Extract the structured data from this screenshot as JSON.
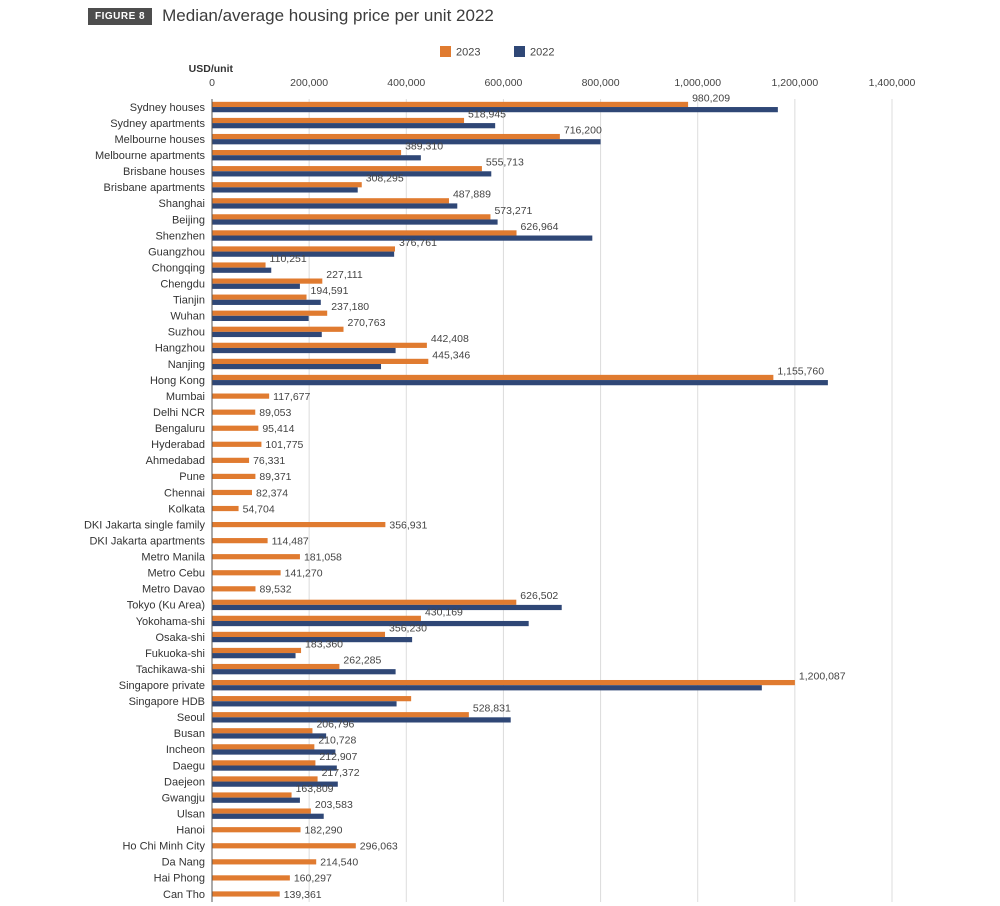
{
  "figure": {
    "tag": "FIGURE 8",
    "title": "Median/average housing price per unit 2022"
  },
  "chart_data": {
    "type": "bar",
    "orientation": "horizontal",
    "ylabel": "USD/unit",
    "xlim": [
      0,
      1400000
    ],
    "xticks": [
      0,
      200000,
      400000,
      600000,
      800000,
      1000000,
      1200000,
      1400000
    ],
    "xtick_labels": [
      "0",
      "200,000",
      "400,000",
      "600,000",
      "800,000",
      "1,000,000",
      "1,200,000",
      "1,400,000"
    ],
    "grid": true,
    "legend_position": "top",
    "colors": {
      "2023": "#e07b30",
      "2022": "#2f4776"
    },
    "series": [
      {
        "name": "2023",
        "label": "2023"
      },
      {
        "name": "2022",
        "label": "2022"
      }
    ],
    "rows": [
      {
        "category": "Sydney houses",
        "v2023": 980209,
        "v2022": 1165000,
        "label": "980,209"
      },
      {
        "category": "Sydney apartments",
        "v2023": 518945,
        "v2022": 583000,
        "label": "518,945"
      },
      {
        "category": "Melbourne houses",
        "v2023": 716200,
        "v2022": 800000,
        "label": "716,200"
      },
      {
        "category": "Melbourne apartments",
        "v2023": 389310,
        "v2022": 430000,
        "label": "389,310"
      },
      {
        "category": "Brisbane houses",
        "v2023": 555713,
        "v2022": 575000,
        "label": "555,713"
      },
      {
        "category": "Brisbane apartments",
        "v2023": 308295,
        "v2022": 300000,
        "label": "308,295"
      },
      {
        "category": "Shanghai",
        "v2023": 487889,
        "v2022": 505000,
        "label": "487,889"
      },
      {
        "category": "Beijing",
        "v2023": 573271,
        "v2022": 588000,
        "label": "573,271"
      },
      {
        "category": "Shenzhen",
        "v2023": 626964,
        "v2022": 783000,
        "label": "626,964"
      },
      {
        "category": "Guangzhou",
        "v2023": 376761,
        "v2022": 375000,
        "label": "376,761"
      },
      {
        "category": "Chongqing",
        "v2023": 110251,
        "v2022": 122000,
        "label": "110,251"
      },
      {
        "category": "Chengdu",
        "v2023": 227111,
        "v2022": 181000,
        "label": "227,111"
      },
      {
        "category": "Tianjin",
        "v2023": 194591,
        "v2022": 224000,
        "label": "194,591"
      },
      {
        "category": "Wuhan",
        "v2023": 237180,
        "v2022": 199000,
        "label": "237,180"
      },
      {
        "category": "Suzhou",
        "v2023": 270763,
        "v2022": 226000,
        "label": "270,763"
      },
      {
        "category": "Hangzhou",
        "v2023": 442408,
        "v2022": 378000,
        "label": "442,408"
      },
      {
        "category": "Nanjing",
        "v2023": 445346,
        "v2022": 348000,
        "label": "445,346"
      },
      {
        "category": "Hong Kong",
        "v2023": 1155760,
        "v2022": 1268000,
        "label": "1,155,760"
      },
      {
        "category": "Mumbai",
        "v2023": 117677,
        "v2022": null,
        "label": "117,677"
      },
      {
        "category": "Delhi NCR",
        "v2023": 89053,
        "v2022": null,
        "label": "89,053"
      },
      {
        "category": "Bengaluru",
        "v2023": 95414,
        "v2022": null,
        "label": "95,414"
      },
      {
        "category": "Hyderabad",
        "v2023": 101775,
        "v2022": null,
        "label": "101,775"
      },
      {
        "category": "Ahmedabad",
        "v2023": 76331,
        "v2022": null,
        "label": "76,331"
      },
      {
        "category": "Pune",
        "v2023": 89371,
        "v2022": null,
        "label": "89,371"
      },
      {
        "category": "Chennai",
        "v2023": 82374,
        "v2022": null,
        "label": "82,374"
      },
      {
        "category": "Kolkata",
        "v2023": 54704,
        "v2022": null,
        "label": "54,704"
      },
      {
        "category": "DKI Jakarta single family",
        "v2023": 356931,
        "v2022": null,
        "label": "356,931"
      },
      {
        "category": "DKI Jakarta apartments",
        "v2023": 114487,
        "v2022": null,
        "label": "114,487"
      },
      {
        "category": "Metro Manila",
        "v2023": 181058,
        "v2022": null,
        "label": "181,058"
      },
      {
        "category": "Metro Cebu",
        "v2023": 141270,
        "v2022": null,
        "label": "141,270"
      },
      {
        "category": "Metro Davao",
        "v2023": 89532,
        "v2022": null,
        "label": "89,532"
      },
      {
        "category": "Tokyo (Ku Area)",
        "v2023": 626502,
        "v2022": 720000,
        "label": "626,502"
      },
      {
        "category": "Yokohama-shi",
        "v2023": 430169,
        "v2022": 652000,
        "label": "430,169"
      },
      {
        "category": "Osaka-shi",
        "v2023": 356230,
        "v2022": 412000,
        "label": "356,230"
      },
      {
        "category": "Fukuoka-shi",
        "v2023": 183360,
        "v2022": 172000,
        "label": "183,360"
      },
      {
        "category": "Tachikawa-shi",
        "v2023": 262285,
        "v2022": 378000,
        "label": "262,285"
      },
      {
        "category": "Singapore private",
        "v2023": 1200087,
        "v2022": 1132000,
        "label": "1,200,087"
      },
      {
        "category": "Singapore HDB",
        "v2023": 410000,
        "v2022": 380000,
        "label": ""
      },
      {
        "category": "Seoul",
        "v2023": 528831,
        "v2022": 615000,
        "label": "528,831"
      },
      {
        "category": "Busan",
        "v2023": 206796,
        "v2022": 235000,
        "label": "206,796"
      },
      {
        "category": "Incheon",
        "v2023": 210728,
        "v2022": 254000,
        "label": "210,728"
      },
      {
        "category": "Daegu",
        "v2023": 212907,
        "v2022": 257000,
        "label": "212,907"
      },
      {
        "category": "Daejeon",
        "v2023": 217372,
        "v2022": 259000,
        "label": "217,372"
      },
      {
        "category": "Gwangju",
        "v2023": 163809,
        "v2022": 181000,
        "label": "163,809"
      },
      {
        "category": "Ulsan",
        "v2023": 203583,
        "v2022": 230000,
        "label": "203,583"
      },
      {
        "category": "Hanoi",
        "v2023": 182290,
        "v2022": null,
        "label": "182,290"
      },
      {
        "category": "Ho Chi Minh City",
        "v2023": 296063,
        "v2022": null,
        "label": "296,063"
      },
      {
        "category": "Da Nang",
        "v2023": 214540,
        "v2022": null,
        "label": "214,540"
      },
      {
        "category": "Hai Phong",
        "v2023": 160297,
        "v2022": null,
        "label": "160,297"
      },
      {
        "category": "Can Tho",
        "v2023": 139361,
        "v2022": null,
        "label": "139,361"
      }
    ]
  }
}
